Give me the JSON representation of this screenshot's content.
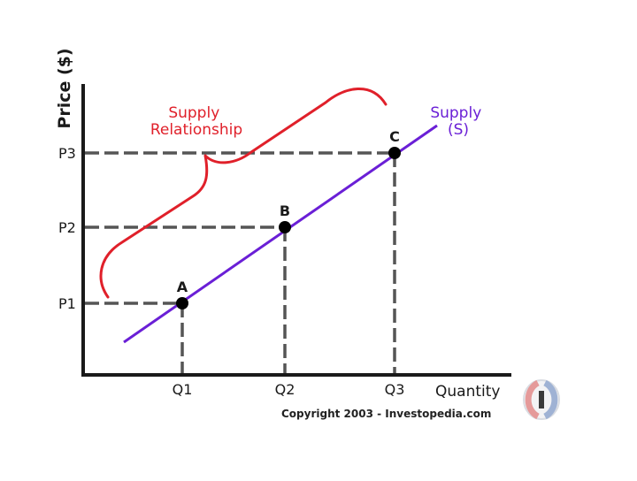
{
  "chart_data": {
    "type": "line",
    "ylabel": "Price ($)",
    "xlabel": "Quantity",
    "x_ticks": [
      "Q1",
      "Q2",
      "Q3"
    ],
    "y_ticks": [
      "P1",
      "P2",
      "P3"
    ],
    "series": [
      {
        "name": "Supply (S)",
        "name_lines": [
          "Supply",
          "(S)"
        ],
        "color": "#6a1fd6",
        "points": [
          {
            "label": "A",
            "x": "Q1",
            "y": "P1"
          },
          {
            "label": "B",
            "x": "Q2",
            "y": "P2"
          },
          {
            "label": "C",
            "x": "Q3",
            "y": "P3"
          }
        ]
      }
    ],
    "annotation": {
      "lines": [
        "Supply",
        "Relationship"
      ],
      "color": "#e0202a"
    },
    "grid": false
  },
  "footer": {
    "copyright": "Copyright 2003 - Investopedia.com"
  },
  "colors": {
    "axis": "#1a1a1a",
    "guide": "#555555",
    "point": "#000000",
    "text": "#1a1a1a"
  },
  "icons": {
    "logo": "investopedia-logo-icon"
  }
}
